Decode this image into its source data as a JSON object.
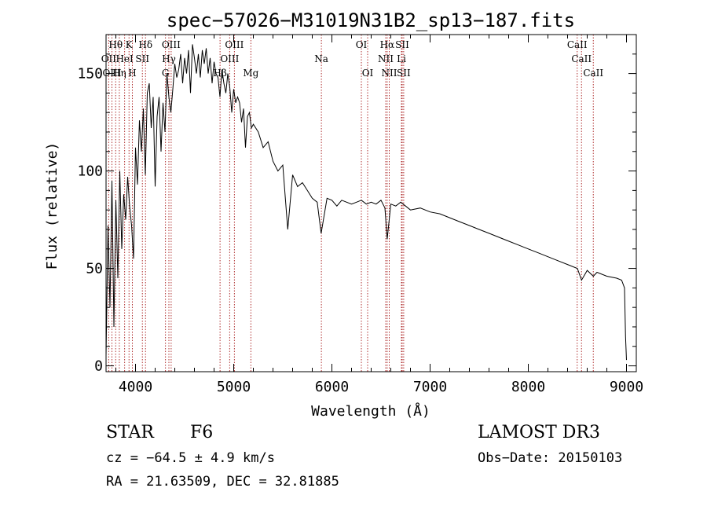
{
  "chart_data": {
    "type": "line",
    "title": "spec−57026−M31019N31B2_sp13−187.fits",
    "xlabel": "Wavelength (Å)",
    "ylabel": "Flux (relative)",
    "xlim": [
      3700,
      9100
    ],
    "ylim": [
      -3,
      170
    ],
    "xticks": [
      4000,
      5000,
      6000,
      7000,
      8000,
      9000
    ],
    "yticks": [
      0,
      50,
      100,
      150
    ],
    "grid": false,
    "series": [
      {
        "name": "spectrum",
        "x": [
          3700,
          3720,
          3740,
          3760,
          3780,
          3800,
          3820,
          3840,
          3860,
          3880,
          3900,
          3920,
          3940,
          3960,
          3980,
          4000,
          4020,
          4040,
          4060,
          4080,
          4100,
          4120,
          4140,
          4160,
          4180,
          4200,
          4220,
          4240,
          4260,
          4280,
          4300,
          4320,
          4340,
          4360,
          4380,
          4400,
          4420,
          4440,
          4460,
          4480,
          4500,
          4520,
          4540,
          4560,
          4580,
          4600,
          4620,
          4640,
          4660,
          4680,
          4700,
          4720,
          4740,
          4760,
          4780,
          4800,
          4820,
          4840,
          4860,
          4880,
          4900,
          4920,
          4940,
          4960,
          4980,
          5000,
          5020,
          5040,
          5060,
          5080,
          5100,
          5120,
          5140,
          5160,
          5180,
          5200,
          5250,
          5300,
          5350,
          5400,
          5450,
          5500,
          5550,
          5600,
          5650,
          5700,
          5750,
          5800,
          5850,
          5890,
          5950,
          6000,
          6050,
          6100,
          6150,
          6200,
          6250,
          6300,
          6350,
          6400,
          6450,
          6500,
          6540,
          6563,
          6600,
          6650,
          6700,
          6750,
          6800,
          6900,
          7000,
          7100,
          7200,
          7300,
          7400,
          7500,
          7600,
          7700,
          7800,
          7900,
          8000,
          8100,
          8200,
          8300,
          8400,
          8500,
          8542,
          8600,
          8662,
          8700,
          8800,
          8900,
          8950,
          8980,
          8990,
          9000
        ],
        "values": [
          5,
          72,
          30,
          95,
          20,
          85,
          45,
          100,
          60,
          88,
          75,
          97,
          82,
          72,
          55,
          112,
          93,
          126,
          110,
          132,
          98,
          140,
          145,
          122,
          138,
          92,
          128,
          138,
          110,
          135,
          120,
          150,
          138,
          130,
          142,
          155,
          148,
          152,
          160,
          145,
          158,
          150,
          162,
          140,
          165,
          158,
          150,
          160,
          148,
          162,
          155,
          163,
          150,
          158,
          145,
          156,
          150,
          148,
          138,
          152,
          145,
          140,
          150,
          143,
          130,
          142,
          135,
          138,
          135,
          125,
          132,
          112,
          128,
          130,
          122,
          124,
          120,
          112,
          115,
          105,
          100,
          103,
          70,
          98,
          92,
          94,
          90,
          86,
          84,
          68,
          86,
          85,
          82,
          85,
          84,
          83,
          84,
          85,
          83,
          84,
          83,
          85,
          81,
          65,
          83,
          82,
          84,
          82,
          80,
          81,
          79,
          78,
          76,
          74,
          72,
          70,
          68,
          66,
          64,
          62,
          60,
          58,
          56,
          54,
          52,
          50,
          44,
          49,
          46,
          48,
          46,
          45,
          44,
          40,
          15,
          3
        ]
      }
    ],
    "lines": [
      {
        "label": "Hθ",
        "x": 3798,
        "row": 0
      },
      {
        "label": "K",
        "x": 3934,
        "row": 0
      },
      {
        "label": "Hδ",
        "x": 4102,
        "row": 0
      },
      {
        "label": "OIII",
        "x": 4363,
        "row": 0
      },
      {
        "label": "OIII",
        "x": 5007,
        "row": 0
      },
      {
        "label": "OI",
        "x": 6300,
        "row": 0
      },
      {
        "label": "Hα",
        "x": 6563,
        "row": 0
      },
      {
        "label": "SII",
        "x": 6716,
        "row": 0
      },
      {
        "label": "CaII",
        "x": 8498,
        "row": 0
      },
      {
        "label": "OII",
        "x": 3727,
        "row": 1
      },
      {
        "label": "HeI",
        "x": 3889,
        "row": 1
      },
      {
        "label": "SII",
        "x": 4070,
        "row": 1
      },
      {
        "label": "Hγ",
        "x": 4340,
        "row": 1
      },
      {
        "label": "OIII",
        "x": 4959,
        "row": 1
      },
      {
        "label": "Na",
        "x": 5893,
        "row": 1
      },
      {
        "label": "NII",
        "x": 6548,
        "row": 1
      },
      {
        "label": "Li",
        "x": 6708,
        "row": 1
      },
      {
        "label": "CaII",
        "x": 8542,
        "row": 1
      },
      {
        "label": "OIII",
        "x": 3760,
        "row": 2
      },
      {
        "label": "Hη",
        "x": 3835,
        "row": 2
      },
      {
        "label": "H",
        "x": 3968,
        "row": 2
      },
      {
        "label": "G",
        "x": 4305,
        "row": 2
      },
      {
        "label": "Hβ",
        "x": 4861,
        "row": 2
      },
      {
        "label": "Mg",
        "x": 5175,
        "row": 2
      },
      {
        "label": "OI",
        "x": 6364,
        "row": 2
      },
      {
        "label": "NII",
        "x": 6584,
        "row": 2
      },
      {
        "label": "SII",
        "x": 6731,
        "row": 2
      },
      {
        "label": "CaII",
        "x": 8662,
        "row": 2
      }
    ]
  },
  "info": {
    "object_class": "STAR",
    "subclass": "F6",
    "survey": "LAMOST DR3",
    "cz": "cz = −64.5 ± 4.9 km/s",
    "obs_date": "Obs−Date: 20150103",
    "radec": "RA =  21.63509, DEC =  32.81885"
  },
  "colors": {
    "line_marker": "#b03030",
    "axis": "#000000"
  }
}
